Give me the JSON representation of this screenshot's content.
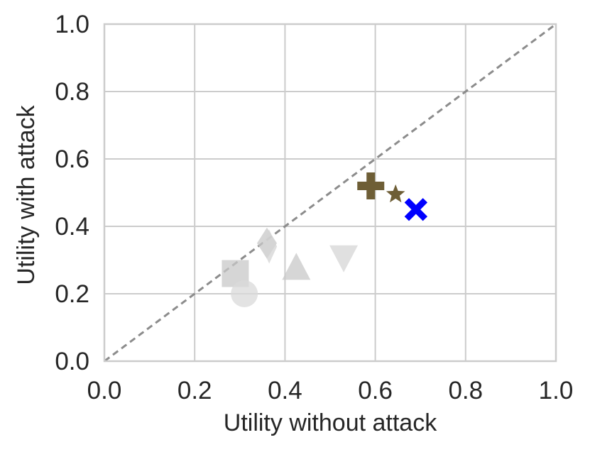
{
  "chart_data": {
    "type": "scatter",
    "title": "",
    "xlabel": "Utility without attack",
    "ylabel": "Utility with attack",
    "xlim": [
      0.0,
      1.0
    ],
    "ylim": [
      0.0,
      1.0
    ],
    "xticks": [
      "0.0",
      "0.2",
      "0.4",
      "0.6",
      "0.8",
      "1.0"
    ],
    "yticks": [
      "0.0",
      "0.2",
      "0.4",
      "0.6",
      "0.8",
      "1.0"
    ],
    "grid": true,
    "reference_line": {
      "style": "dashed",
      "from": [
        0.0,
        0.0
      ],
      "to": [
        1.0,
        1.0
      ],
      "color": "#8c8c8c"
    },
    "points": [
      {
        "marker": "square",
        "x": 0.29,
        "y": 0.26,
        "color": "#c8c8c8",
        "opacity": 0.75
      },
      {
        "marker": "circle",
        "x": 0.31,
        "y": 0.2,
        "color": "#d9d9d9",
        "opacity": 0.75
      },
      {
        "marker": "diamond",
        "x": 0.36,
        "y": 0.35,
        "color": "#c8c8c8",
        "opacity": 0.75
      },
      {
        "marker": "diamond-thin",
        "x": 0.365,
        "y": 0.34,
        "color": "#d4d4d4",
        "opacity": 0.75
      },
      {
        "marker": "triangle-up",
        "x": 0.425,
        "y": 0.275,
        "color": "#c8c8c8",
        "opacity": 0.75
      },
      {
        "marker": "triangle-down",
        "x": 0.53,
        "y": 0.31,
        "color": "#d6d6d6",
        "opacity": 0.75
      },
      {
        "marker": "plus",
        "x": 0.59,
        "y": 0.52,
        "color": "#6e5e36",
        "opacity": 1.0
      },
      {
        "marker": "star",
        "x": 0.645,
        "y": 0.495,
        "color": "#6e5e36",
        "opacity": 1.0
      },
      {
        "marker": "x",
        "x": 0.69,
        "y": 0.45,
        "color": "#0000ff",
        "opacity": 1.0
      }
    ]
  }
}
